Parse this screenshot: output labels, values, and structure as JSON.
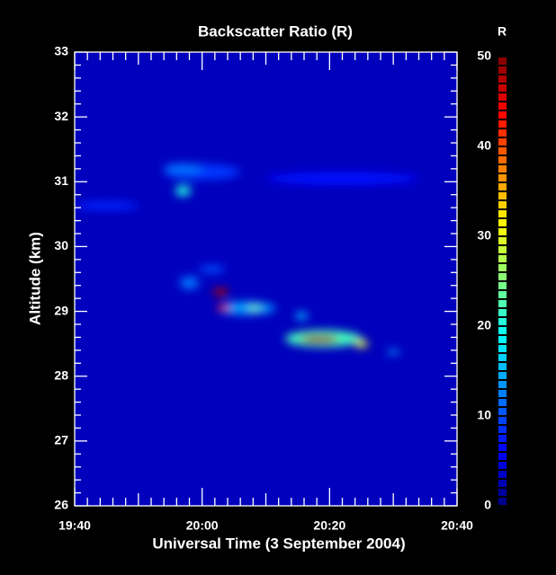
{
  "chart_data": {
    "type": "heatmap",
    "title": "Backscatter Ratio (R)",
    "x_label": "Universal Time (3 September 2004)",
    "y_label": "Altitude (km)",
    "colorbar_label": "R",
    "xlim": [
      1180,
      1240
    ],
    "xticks": [
      {
        "value": 1180,
        "label": "19:40"
      },
      {
        "value": 1200,
        "label": "20:00"
      },
      {
        "value": 1220,
        "label": "20:20"
      },
      {
        "value": 1240,
        "label": "20:40"
      }
    ],
    "ylim": [
      26,
      33
    ],
    "yticks": [
      26,
      27,
      28,
      29,
      30,
      31,
      32,
      33
    ],
    "zlim": [
      0,
      50
    ],
    "zticks": [
      0,
      10,
      20,
      30,
      40,
      50
    ],
    "background": 3,
    "blobs": [
      {
        "x": 1222,
        "y": 31.05,
        "value": 7,
        "dx": 12,
        "dy": 0.1
      },
      {
        "x": 1185,
        "y": 30.63,
        "value": 8,
        "dx": 5,
        "dy": 0.07
      },
      {
        "x": 1200,
        "y": 31.15,
        "value": 9,
        "dx": 6,
        "dy": 0.12
      },
      {
        "x": 1197,
        "y": 31.2,
        "value": 12,
        "dx": 3,
        "dy": 0.08
      },
      {
        "x": 1197,
        "y": 30.86,
        "value": 20,
        "dx": 1.2,
        "dy": 0.08
      },
      {
        "x": 1201.5,
        "y": 29.65,
        "value": 10,
        "dx": 2,
        "dy": 0.06
      },
      {
        "x": 1198,
        "y": 29.44,
        "value": 12,
        "dx": 1.5,
        "dy": 0.1
      },
      {
        "x": 1207,
        "y": 29.05,
        "value": 14,
        "dx": 4.5,
        "dy": 0.1
      },
      {
        "x": 1215.6,
        "y": 28.93,
        "value": 15,
        "dx": 1,
        "dy": 0.06
      },
      {
        "x": 1208.2,
        "y": 29.05,
        "value": 25,
        "dx": 1,
        "dy": 0.04
      },
      {
        "x": 1202.9,
        "y": 29.3,
        "value": 48,
        "dx": 1.2,
        "dy": 0.06
      },
      {
        "x": 1203.3,
        "y": 29.06,
        "value": 45,
        "dx": 1,
        "dy": 0.05
      },
      {
        "x": 1219,
        "y": 28.58,
        "value": 22,
        "dx": 6,
        "dy": 0.13
      },
      {
        "x": 1230,
        "y": 28.37,
        "value": 14,
        "dx": 1,
        "dy": 0.04
      },
      {
        "x": 1225,
        "y": 28.5,
        "value": 30,
        "dx": 1,
        "dy": 0.06
      },
      {
        "x": 1218.4,
        "y": 28.57,
        "value": 49,
        "dx": 3,
        "dy": 0.06
      }
    ]
  }
}
